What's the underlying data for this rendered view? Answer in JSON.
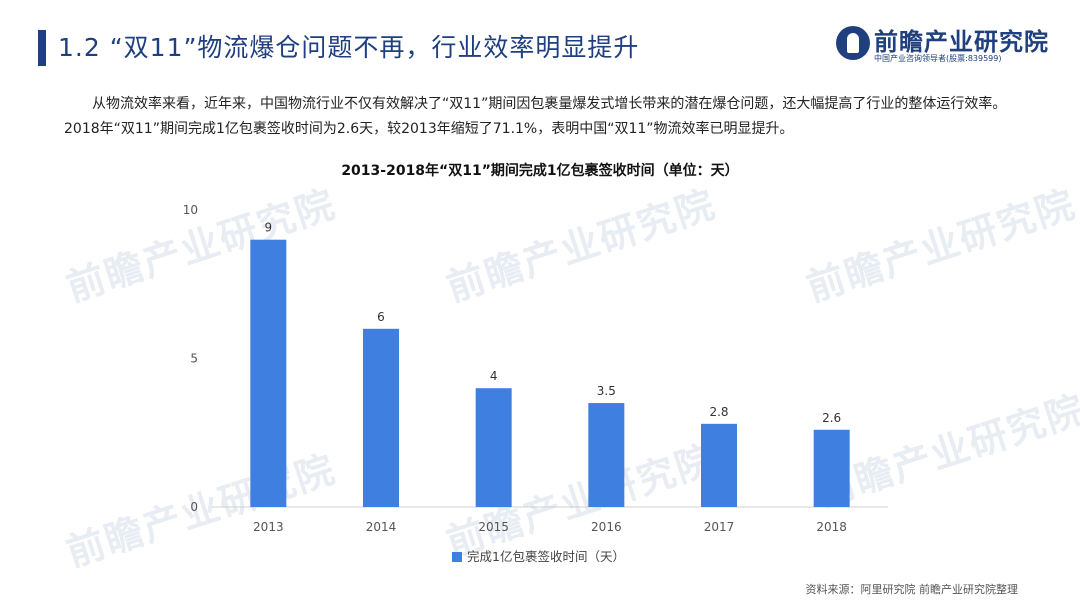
{
  "header": {
    "title": "1.2 “双11”物流爆仓问题不再，行业效率明显提升",
    "logo_name": "前瞻产业研究院",
    "logo_sub": "中国产业咨询领导者(股票:839599)"
  },
  "intro_text": "从物流效率来看，近年来，中国物流行业不仅有效解决了“双11”期间因包裹量爆发式增长带来的潜在爆仓问题，还大幅提高了行业的整体运行效率。2018年“双11”期间完成1亿包裹签收时间为2.6天，较2013年缩短了71.1%，表明中国“双11”物流效率已明显提升。",
  "watermark": "前瞻产业研究院",
  "source": "资料来源：阿里研究院 前瞻产业研究院整理",
  "colors": {
    "bar": "#3f7fe0",
    "title": "#1f3f7f"
  },
  "chart_data": {
    "type": "bar",
    "title": "2013-2018年“双11”期间完成1亿包裹签收时间（单位：天）",
    "categories": [
      "2013",
      "2014",
      "2015",
      "2016",
      "2017",
      "2018"
    ],
    "series": [
      {
        "name": "完成1亿包裹签收时间（天）",
        "values": [
          9,
          6,
          4,
          3.5,
          2.8,
          2.6
        ]
      }
    ],
    "data_labels": [
      "9",
      "6",
      "4",
      "3.5",
      "2.8",
      "2.6"
    ],
    "yticks": [
      0,
      5,
      10
    ],
    "ylim": [
      0,
      10
    ],
    "grid": false,
    "legend_position": "bottom"
  }
}
